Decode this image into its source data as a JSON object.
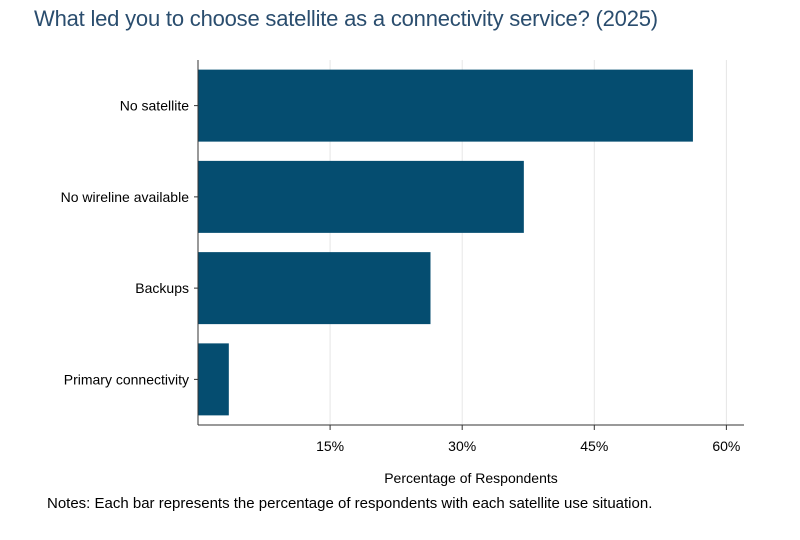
{
  "chart_data": {
    "type": "bar",
    "orientation": "horizontal",
    "title": "What led you to choose satellite as a connectivity service? (2025)",
    "categories": [
      "No satellite",
      "No wireline available",
      "Backups",
      "Primary connectivity"
    ],
    "values": [
      56.2,
      37.0,
      26.4,
      3.5
    ],
    "xlabel": "Percentage of Respondents",
    "ylabel": "",
    "xlim": [
      0,
      62
    ],
    "xticks": [
      15,
      30,
      45,
      60
    ],
    "xtick_labels": [
      "15%",
      "30%",
      "45%",
      "60%"
    ],
    "grid": true,
    "bar_color": "#054d70"
  },
  "notes": "Notes: Each bar represents the percentage of respondents with each satellite use situation.",
  "colors": {
    "title": "#2a4d6e",
    "bar": "#054d70",
    "grid": "#e6e6e6",
    "axis": "#333333"
  }
}
